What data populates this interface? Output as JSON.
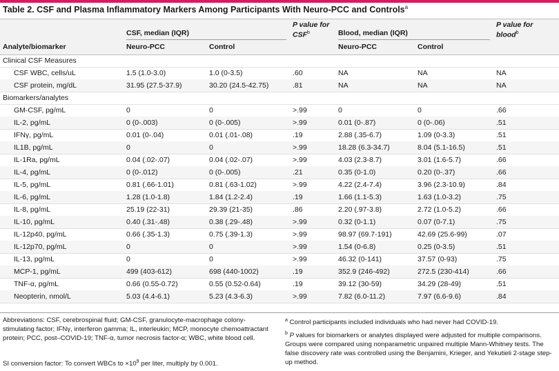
{
  "title": "Table 2. CSF and Plasma Inflammatory Markers Among Participants With Neuro-PCC and Controls",
  "title_note": "a",
  "header": {
    "analyte": "Analyte/biomarker",
    "csf_group": "CSF, median (IQR)",
    "p_csf": "P value for CSF",
    "p_csf_note": "b",
    "blood_group": "Blood, median (IQR)",
    "p_blood": "P value for blood",
    "p_blood_note": "b",
    "neuro_pcc": "Neuro-PCC",
    "control": "Control"
  },
  "sections": {
    "clinical": "Clinical CSF Measures",
    "biomarkers": "Biomarkers/analytes"
  },
  "clinical_rows": [
    {
      "analyte": "CSF WBC, cells/uL",
      "csf_pcc": "1.5 (1.0-3.0)",
      "csf_ctrl": "1.0 (0-3.5)",
      "p_csf": ".60",
      "bl_pcc": "NA",
      "bl_ctrl": "NA",
      "p_bl": "NA"
    },
    {
      "analyte": "CSF protein, mg/dL",
      "csf_pcc": "31.95 (27.5-37.9)",
      "csf_ctrl": "30.20 (24.5-42.75)",
      "p_csf": ".81",
      "bl_pcc": "NA",
      "bl_ctrl": "NA",
      "p_bl": "NA"
    }
  ],
  "biomarker_rows": [
    {
      "analyte": "GM-CSF, pg/mL",
      "csf_pcc": "0",
      "csf_ctrl": "0",
      "p_csf": ">.99",
      "bl_pcc": "0",
      "bl_ctrl": "0",
      "p_bl": ".66"
    },
    {
      "analyte": "IL-2, pg/mL",
      "csf_pcc": "0 (0-.003)",
      "csf_ctrl": "0 (0-.005)",
      "p_csf": ">.99",
      "bl_pcc": "0.01 (0-.87)",
      "bl_ctrl": "0 (0-.06)",
      "p_bl": ".51"
    },
    {
      "analyte": "IFNγ, pg/mL",
      "csf_pcc": "0.01 (0-.04)",
      "csf_ctrl": "0.01 (.01-.08)",
      "p_csf": ".19",
      "bl_pcc": "2.88 (.35-6.7)",
      "bl_ctrl": "1.09 (0-3.3)",
      "p_bl": ".51"
    },
    {
      "analyte": "IL1B, pg/mL",
      "csf_pcc": "0",
      "csf_ctrl": "0",
      "p_csf": ">.99",
      "bl_pcc": "18.28 (6.3-34.7)",
      "bl_ctrl": "8.04 (5.1-16.5)",
      "p_bl": ".51"
    },
    {
      "analyte": "IL-1Ra, pg/mL",
      "csf_pcc": "0.04 (.02-.07)",
      "csf_ctrl": "0.04 (.02-.07)",
      "p_csf": ">.99",
      "bl_pcc": "4.03 (2.3-8.7)",
      "bl_ctrl": "3.01 (1.6-5.7)",
      "p_bl": ".66"
    },
    {
      "analyte": "IL-4, pg/mL",
      "csf_pcc": "0 (0-.012)",
      "csf_ctrl": "0 (0-.005)",
      "p_csf": ".21",
      "bl_pcc": "0.35 (0-1.0)",
      "bl_ctrl": "0.20 (0-.37)",
      "p_bl": ".66"
    },
    {
      "analyte": "IL-5, pg/mL",
      "csf_pcc": "0.81 (.66-1.01)",
      "csf_ctrl": "0.81 (.63-1.02)",
      "p_csf": ">.99",
      "bl_pcc": "4.22 (2.4-7.4)",
      "bl_ctrl": "3.96 (2.3-10.9)",
      "p_bl": ".84"
    },
    {
      "analyte": "IL-6, pg/mL",
      "csf_pcc": "1.28 (1.0-1.8)",
      "csf_ctrl": "1.84 (1.2-2.4)",
      "p_csf": ".19",
      "bl_pcc": "1.66 (1.1-5.3)",
      "bl_ctrl": "1.63 (1.0-3.2)",
      "p_bl": ".75"
    },
    {
      "analyte": "IL-8, pg/mL",
      "csf_pcc": "25.19 (22-31)",
      "csf_ctrl": "29.39 (21-35)",
      "p_csf": ".86",
      "bl_pcc": "2.20 (.97-3.8)",
      "bl_ctrl": "2.72 (1.0-5.2)",
      "p_bl": ".66"
    },
    {
      "analyte": "IL-10, pg/mL",
      "csf_pcc": "0.40 (.31-.48)",
      "csf_ctrl": "0.38 (.29-.48)",
      "p_csf": ">.99",
      "bl_pcc": "0.32 (0-1.1)",
      "bl_ctrl": "0.07 (0-7.1)",
      "p_bl": ".75"
    },
    {
      "analyte": "IL-12p40, pg/mL",
      "csf_pcc": "0.66 (.35-1.3)",
      "csf_ctrl": "0.75 (.39-1.3)",
      "p_csf": ">.99",
      "bl_pcc": "98.97 (69.7-191)",
      "bl_ctrl": "42.69 (25.6-99)",
      "p_bl": ".07"
    },
    {
      "analyte": "IL-12p70, pg/mL",
      "csf_pcc": "0",
      "csf_ctrl": "0",
      "p_csf": ">.99",
      "bl_pcc": "1.54 (0-6.8)",
      "bl_ctrl": "0.25 (0-3.5)",
      "p_bl": ".51"
    },
    {
      "analyte": "IL-13, pg/mL",
      "csf_pcc": "0",
      "csf_ctrl": "0",
      "p_csf": ">.99",
      "bl_pcc": "46.32 (0-141)",
      "bl_ctrl": "37.57 (0-93)",
      "p_bl": ".75"
    },
    {
      "analyte": "MCP-1, pg/mL",
      "csf_pcc": "499 (403-612)",
      "csf_ctrl": "698 (440-1002)",
      "p_csf": ".19",
      "bl_pcc": "352.9 (246-492)",
      "bl_ctrl": "272.5 (230-414)",
      "p_bl": ".66"
    },
    {
      "analyte": "TNF-α, pg/mL",
      "csf_pcc": "0.66 (0.55-0.72)",
      "csf_ctrl": "0.55 (0.52-0.64)",
      "p_csf": ".19",
      "bl_pcc": "39.12 (30-59)",
      "bl_ctrl": "34.29 (28-49)",
      "p_bl": ".51"
    },
    {
      "analyte": "Neopterin, nmol/L",
      "csf_pcc": "5.03 (4.4-6.1)",
      "csf_ctrl": "5.23 (4.3-6.3)",
      "p_csf": ">.99",
      "bl_pcc": "7.82 (6.0-11.2)",
      "bl_ctrl": "7.97 (6.6-9.6)",
      "p_bl": ".84"
    }
  ],
  "footnotes": {
    "abbreviations": "Abbreviations: CSF, cerebrospinal fluid; GM-CSF, granulocyte-macrophage colony-stimulating factor; IFNγ, interferon gamma; IL, interleukin; MCP, monocyte chemoattractant protein; PCC, post–COVID-19; TNF-α, tumor necrosis factor-α; WBC, white blood cell.",
    "si_prefix": "SI conversion factor: To convert WBCs to ×10",
    "si_exp": "9",
    "si_suffix": " per liter, multiply by 0.001.",
    "a_mark": "a",
    "a_text": "Control participants included individuals who had never had COVID-19.",
    "b_mark": "b",
    "b_p": "P",
    "b_text": " values for biomarkers or analytes displayed were adjusted for multiple comparisons. Groups were compared using nonparametric unpaired multiple Mann-Whitney tests. The false discovery rate was controlled using the Benjamini, Krieger, and Yekutieli 2-stage step-up method."
  },
  "colors": {
    "accent": "#d81b60",
    "header_bg": "#f2f2f2",
    "stripe_bg": "#f5f5f5"
  }
}
